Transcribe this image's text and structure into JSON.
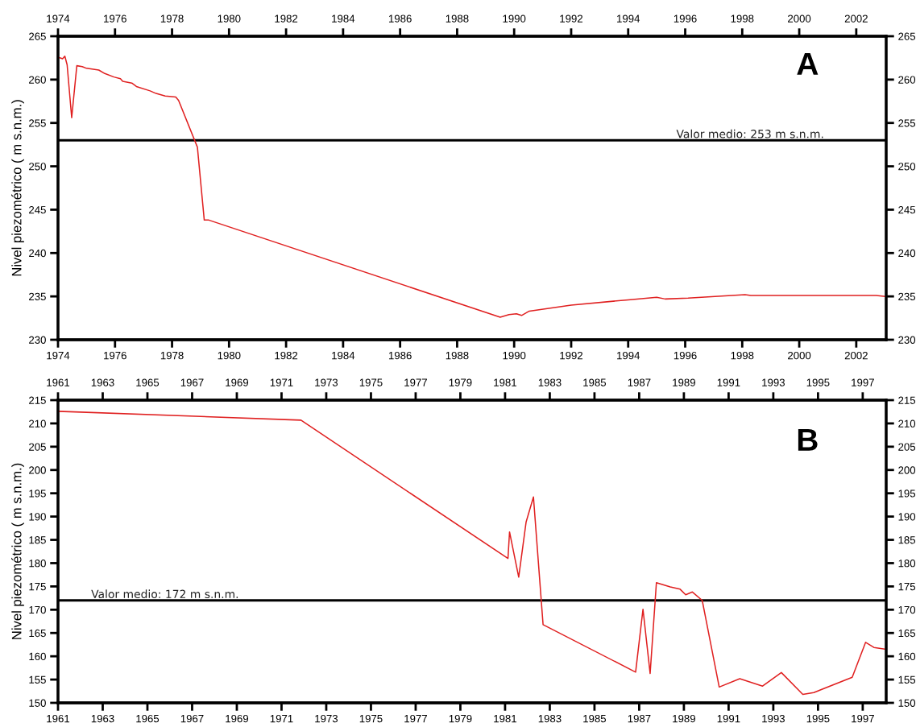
{
  "chart_data": [
    {
      "type": "line",
      "ylabel": "Nivel piezométrico ( m s.n.m.)",
      "annotations": [
        "A"
      ],
      "xlim": [
        1974,
        2003.05
      ],
      "xticks": [
        1974,
        1976,
        1978,
        1980,
        1982,
        1984,
        1986,
        1988,
        1990,
        1992,
        1994,
        1996,
        1998,
        2000,
        2002
      ],
      "x2lim": [
        1974,
        2003.05
      ],
      "x2ticks": [
        1974,
        1976,
        1978,
        1980,
        1982,
        1984,
        1986,
        1988,
        1990,
        1992,
        1994,
        1996,
        1998,
        2000,
        2002
      ],
      "ylim": [
        230,
        265
      ],
      "yticks": [
        230,
        235,
        240,
        245,
        250,
        255,
        260,
        265
      ],
      "y2lim": [
        230,
        265
      ],
      "y2ticks": [
        230,
        235,
        240,
        245,
        250,
        255,
        260,
        265
      ],
      "grid": false,
      "marker": "none",
      "line_style": "solid",
      "ref_lines": [
        {
          "axis": "y",
          "value": 253,
          "label": "Valor medio: 253 m s.n.m.",
          "color": "#000000"
        }
      ],
      "series": [
        {
          "color": "#e02020",
          "x": [
            1974.0,
            1974.16,
            1974.24,
            1974.32,
            1974.48,
            1974.66,
            1974.85,
            1975.0,
            1975.43,
            1975.64,
            1975.96,
            1976.19,
            1976.27,
            1976.59,
            1976.75,
            1977.23,
            1977.44,
            1977.76,
            1978.13,
            1978.23,
            1978.89,
            1979.13,
            1979.29,
            1989.51,
            1989.82,
            1990.08,
            1990.26,
            1990.53,
            1992.0,
            1994.0,
            1995.0,
            1995.3,
            1996.1,
            1998.1,
            1998.3,
            2002.7,
            2003.0
          ],
          "values": [
            262.6,
            262.4,
            262.7,
            261.7,
            255.6,
            261.6,
            261.5,
            261.3,
            261.1,
            260.7,
            260.3,
            260.1,
            259.8,
            259.6,
            259.2,
            258.7,
            258.4,
            258.1,
            258.0,
            257.6,
            252.2,
            243.8,
            243.8,
            232.6,
            232.9,
            233.0,
            232.8,
            233.3,
            234.0,
            234.6,
            234.9,
            234.7,
            234.8,
            235.2,
            235.1,
            235.1,
            235.0
          ]
        }
      ]
    },
    {
      "type": "line",
      "ylabel": "Nivel piezométrico ( m s.n.m.)",
      "annotations": [
        "B"
      ],
      "xlim": [
        1961,
        1998.05
      ],
      "xticks": [
        1961,
        1963,
        1965,
        1967,
        1969,
        1971,
        1973,
        1975,
        1977,
        1979,
        1981,
        1983,
        1985,
        1987,
        1989,
        1991,
        1993,
        1995,
        1997
      ],
      "x2lim": [
        1961,
        1998.05
      ],
      "x2ticks": [
        1961,
        1963,
        1965,
        1967,
        1969,
        1971,
        1973,
        1975,
        1977,
        1979,
        1981,
        1983,
        1985,
        1987,
        1989,
        1991,
        1993,
        1995,
        1997
      ],
      "ylim": [
        150,
        215
      ],
      "yticks": [
        150,
        155,
        160,
        165,
        170,
        175,
        180,
        185,
        190,
        195,
        200,
        205,
        210,
        215
      ],
      "y2lim": [
        150,
        215
      ],
      "y2ticks": [
        150,
        155,
        160,
        165,
        170,
        175,
        180,
        185,
        190,
        195,
        200,
        205,
        210,
        215
      ],
      "grid": false,
      "marker": "none",
      "line_style": "solid",
      "ref_lines": [
        {
          "axis": "y",
          "value": 172,
          "label": "Valor medio: 172 m s.n.m.",
          "color": "#000000"
        }
      ],
      "series": [
        {
          "color": "#e02020",
          "x": [
            1961.0,
            1971.87,
            1981.13,
            1981.2,
            1981.61,
            1981.94,
            1982.27,
            1982.7,
            1986.84,
            1987.17,
            1987.49,
            1987.77,
            1988.39,
            1988.83,
            1989.08,
            1989.38,
            1989.82,
            1990.58,
            1991.5,
            1992.52,
            1993.36,
            1994.32,
            1994.81,
            1996.53,
            1997.13,
            1997.5,
            1998.05
          ],
          "values": [
            212.6,
            210.7,
            181.0,
            186.7,
            177.0,
            188.8,
            194.2,
            166.8,
            156.6,
            170.1,
            156.3,
            175.8,
            174.9,
            174.4,
            173.2,
            173.8,
            172.0,
            153.4,
            155.2,
            153.6,
            156.5,
            151.8,
            152.2,
            155.5,
            163.0,
            161.9,
            161.5
          ]
        }
      ]
    }
  ]
}
